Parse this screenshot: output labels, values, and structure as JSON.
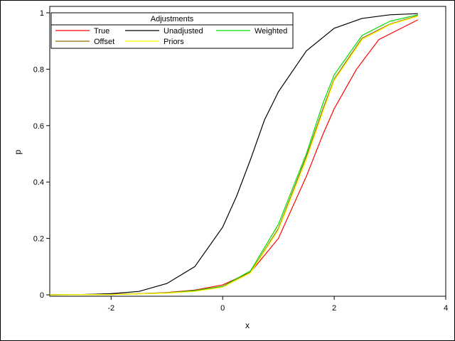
{
  "chart_data": {
    "type": "line",
    "title": "",
    "xlabel": "x",
    "ylabel": "p",
    "xlim": [
      -3.1,
      4.0
    ],
    "ylim": [
      0,
      1.0
    ],
    "xticks": [
      "-2",
      "0",
      "2",
      "4"
    ],
    "yticks": [
      "0",
      "0.2",
      "0.4",
      "0.6",
      "0.8",
      "1"
    ],
    "legend": {
      "title": "Adjustments",
      "placement": "top-left",
      "entries": [
        "True",
        "Unadjusted",
        "Weighted",
        "Offset",
        "Priors"
      ]
    },
    "series": [
      {
        "name": "True",
        "color": "#ff0000",
        "x": [
          -3.1,
          -2.0,
          -1.5,
          -1.0,
          -0.5,
          0.0,
          0.5,
          1.0,
          1.5,
          1.8,
          2.0,
          2.4,
          2.8,
          3.5
        ],
        "y": [
          0.0,
          0.002,
          0.004,
          0.008,
          0.017,
          0.035,
          0.08,
          0.2,
          0.42,
          0.57,
          0.66,
          0.8,
          0.905,
          0.975
        ]
      },
      {
        "name": "Unadjusted",
        "color": "#000000",
        "x": [
          -3.1,
          -2.5,
          -2.0,
          -1.5,
          -1.0,
          -0.5,
          0.0,
          0.25,
          0.5,
          0.75,
          1.0,
          1.5,
          2.0,
          2.5,
          3.0,
          3.5
        ],
        "y": [
          0.0,
          0.001,
          0.004,
          0.012,
          0.04,
          0.1,
          0.24,
          0.35,
          0.48,
          0.62,
          0.72,
          0.865,
          0.945,
          0.98,
          0.993,
          0.997
        ]
      },
      {
        "name": "Weighted",
        "color": "#00dd00",
        "x": [
          -3.1,
          -2.0,
          -1.0,
          -0.5,
          0.0,
          0.5,
          1.0,
          1.5,
          1.8,
          2.0,
          2.5,
          3.0,
          3.5
        ],
        "y": [
          0.0,
          0.001,
          0.007,
          0.015,
          0.03,
          0.085,
          0.25,
          0.5,
          0.68,
          0.78,
          0.92,
          0.97,
          0.993
        ]
      },
      {
        "name": "Offset",
        "color": "#996600",
        "x": [
          -3.1,
          -2.0,
          -1.0,
          -0.5,
          0.0,
          0.5,
          1.0,
          1.5,
          1.8,
          2.0,
          2.5,
          3.0,
          3.5
        ],
        "y": [
          0.0,
          0.001,
          0.006,
          0.013,
          0.028,
          0.08,
          0.235,
          0.49,
          0.66,
          0.765,
          0.91,
          0.96,
          0.99
        ]
      },
      {
        "name": "Priors",
        "color": "#ffff00",
        "x": [
          -3.1,
          -2.0,
          -1.0,
          -0.5,
          0.0,
          0.5,
          1.0,
          1.5,
          1.8,
          2.0,
          2.5,
          3.0,
          3.5
        ],
        "y": [
          0.0,
          0.001,
          0.006,
          0.012,
          0.027,
          0.078,
          0.23,
          0.48,
          0.65,
          0.76,
          0.905,
          0.958,
          0.988
        ]
      }
    ]
  }
}
